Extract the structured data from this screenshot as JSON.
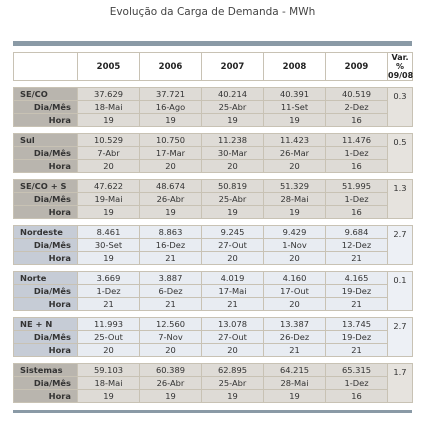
{
  "title": "Evolução da Carga de Demanda - MWh",
  "header": {
    "years": [
      "2005",
      "2006",
      "2007",
      "2008",
      "2009"
    ],
    "var_line1": "Var. %",
    "var_line2": "09/08"
  },
  "sub_labels": {
    "dia_mes": "Dia/Mês",
    "hora": "Hora"
  },
  "groups": [
    {
      "name": "SE/CO",
      "style": "gray",
      "values": [
        "37.629",
        "37.721",
        "40.214",
        "40.391",
        "40.519"
      ],
      "dates": [
        "18-Mai",
        "16-Ago",
        "25-Abr",
        "11-Set",
        "2-Dez"
      ],
      "hours": [
        "19",
        "19",
        "19",
        "19",
        "16"
      ],
      "var": "0.3"
    },
    {
      "name": "Sul",
      "style": "gray",
      "values": [
        "10.529",
        "10.750",
        "11.238",
        "11.423",
        "11.476"
      ],
      "dates": [
        "7-Abr",
        "17-Mar",
        "30-Mar",
        "26-Mar",
        "1-Dez"
      ],
      "hours": [
        "20",
        "20",
        "20",
        "20",
        "16"
      ],
      "var": "0.5"
    },
    {
      "name": "SE/CO + S",
      "style": "gray",
      "values": [
        "47.622",
        "48.674",
        "50.819",
        "51.329",
        "51.995"
      ],
      "dates": [
        "19-Mai",
        "26-Abr",
        "25-Abr",
        "28-Mai",
        "1-Dez"
      ],
      "hours": [
        "19",
        "19",
        "19",
        "19",
        "16"
      ],
      "var": "1.3"
    },
    {
      "name": "Nordeste",
      "style": "blue",
      "values": [
        "8.461",
        "8.863",
        "9.245",
        "9.429",
        "9.684"
      ],
      "dates": [
        "30-Set",
        "16-Dez",
        "27-Out",
        "1-Nov",
        "12-Dez"
      ],
      "hours": [
        "19",
        "21",
        "20",
        "20",
        "21"
      ],
      "var": "2.7"
    },
    {
      "name": "Norte",
      "style": "blue",
      "values": [
        "3.669",
        "3.887",
        "4.019",
        "4.160",
        "4.165"
      ],
      "dates": [
        "1-Dez",
        "6-Dez",
        "17-Mai",
        "17-Out",
        "19-Dez"
      ],
      "hours": [
        "21",
        "21",
        "21",
        "20",
        "21"
      ],
      "var": "0.1"
    },
    {
      "name": "NE + N",
      "style": "blue",
      "values": [
        "11.993",
        "12.560",
        "13.078",
        "13.387",
        "13.745"
      ],
      "dates": [
        "25-Out",
        "7-Nov",
        "27-Out",
        "26-Dez",
        "19-Dez"
      ],
      "hours": [
        "20",
        "20",
        "20",
        "21",
        "21"
      ],
      "var": "2.7"
    },
    {
      "name": "Sistemas",
      "style": "gray",
      "values": [
        "59.103",
        "60.389",
        "62.895",
        "64.215",
        "65.315"
      ],
      "dates": [
        "18-Mai",
        "26-Abr",
        "25-Abr",
        "28-Mai",
        "1-Dez"
      ],
      "hours": [
        "19",
        "19",
        "19",
        "19",
        "16"
      ],
      "var": "1.7"
    }
  ]
}
